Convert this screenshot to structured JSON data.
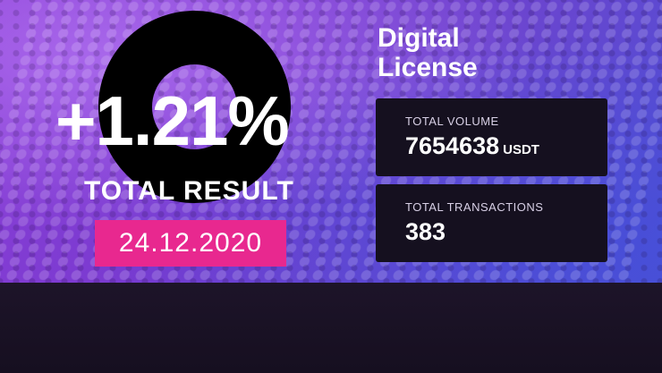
{
  "product": {
    "line1": "Digital",
    "line2": "License"
  },
  "result": {
    "value": "+1.21%",
    "label": "TOTAL RESULT",
    "date": "24.12.2020"
  },
  "stats": {
    "volume": {
      "label": "TOTAL VOLUME",
      "value": "7654638",
      "unit": "USDT"
    },
    "transactions": {
      "label": "TOTAL TRANSACTIONS",
      "value": "383"
    }
  },
  "colors": {
    "accent": "#e8288f",
    "card": "#15101f",
    "background": "#7a3ad0"
  }
}
